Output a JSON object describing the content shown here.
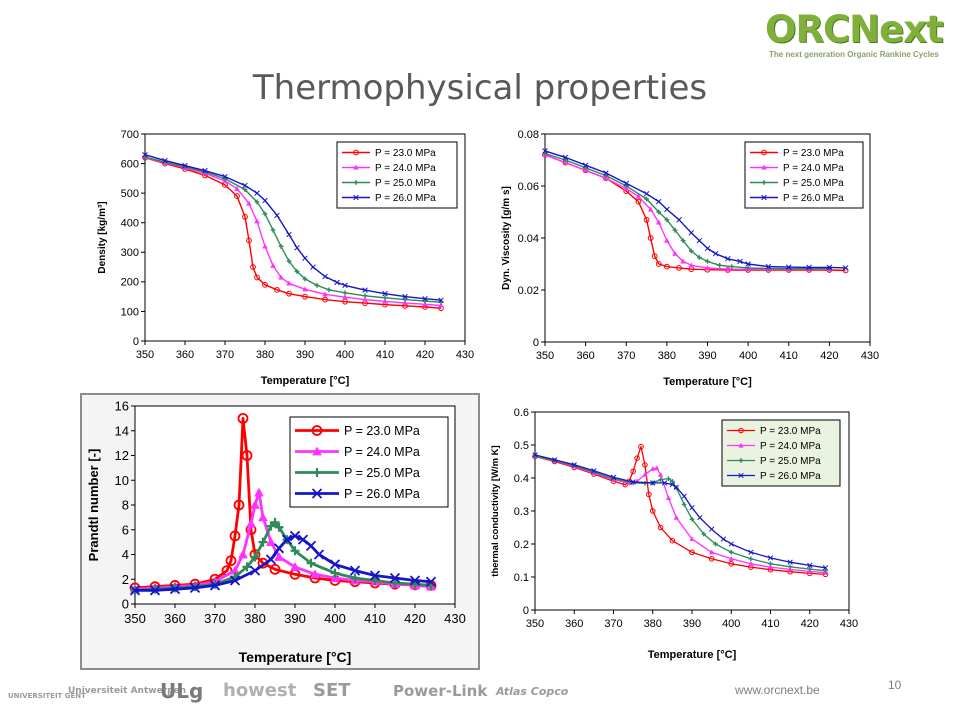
{
  "slide": {
    "title": "Thermophysical properties",
    "url": "www.orcnext.be",
    "page_number": "10",
    "logo": {
      "name": "ORCNext",
      "tagline": "The next generation Organic Rankine Cycles"
    },
    "partners": [
      "UNIVERSITEIT GENT",
      "Universiteit Antwerpen",
      "ULg",
      "howest",
      "SET",
      "Power-Link",
      "Atlas Copco"
    ]
  },
  "colors": {
    "p23": "#ff0000",
    "p24": "#ff33ff",
    "p25": "#2e8b57",
    "p26": "#1515c8",
    "title": "#595959",
    "logo": "#7fb13a"
  },
  "chart_data": [
    {
      "type": "line",
      "xlabel": "Temperature [°C]",
      "ylabel": "Density [kg/m³]",
      "xlim": [
        350,
        430
      ],
      "ylim": [
        0,
        700
      ],
      "xticks": [
        350,
        360,
        370,
        380,
        390,
        400,
        410,
        420,
        430
      ],
      "yticks": [
        0,
        100,
        200,
        300,
        400,
        500,
        600,
        700
      ],
      "legend": "top-right",
      "series": [
        {
          "name": "P = 23.0 MPa",
          "marker": "circle",
          "x": [
            350,
            355,
            360,
            365,
            370,
            373,
            375,
            376,
            377,
            378,
            380,
            383,
            386,
            390,
            395,
            400,
            405,
            410,
            415,
            420,
            424
          ],
          "y": [
            620,
            600,
            582,
            560,
            528,
            490,
            420,
            340,
            250,
            215,
            190,
            173,
            160,
            150,
            140,
            133,
            128,
            123,
            119,
            115,
            111
          ]
        },
        {
          "name": "P = 24.0 MPa",
          "marker": "triangle",
          "x": [
            350,
            355,
            360,
            365,
            370,
            373,
            376,
            378,
            380,
            382,
            384,
            386,
            390,
            395,
            400,
            405,
            410,
            415,
            420,
            424
          ],
          "y": [
            621,
            603,
            586,
            567,
            541,
            515,
            465,
            405,
            320,
            255,
            215,
            195,
            175,
            158,
            148,
            140,
            134,
            129,
            124,
            120
          ]
        },
        {
          "name": "P = 25.0 MPa",
          "marker": "plus",
          "x": [
            350,
            355,
            360,
            365,
            370,
            375,
            378,
            380,
            382,
            384,
            386,
            388,
            390,
            393,
            396,
            400,
            405,
            410,
            415,
            420,
            424
          ],
          "y": [
            622,
            605,
            589,
            571,
            549,
            512,
            470,
            430,
            375,
            320,
            270,
            235,
            210,
            188,
            173,
            163,
            153,
            146,
            140,
            135,
            131
          ]
        },
        {
          "name": "P = 26.0 MPa",
          "marker": "cross",
          "x": [
            350,
            355,
            360,
            365,
            370,
            375,
            378,
            380,
            383,
            386,
            388,
            390,
            392,
            395,
            398,
            400,
            405,
            410,
            415,
            420,
            424
          ],
          "y": [
            630,
            610,
            593,
            576,
            556,
            526,
            500,
            475,
            425,
            360,
            315,
            280,
            250,
            218,
            198,
            188,
            172,
            160,
            150,
            143,
            138
          ]
        }
      ]
    },
    {
      "type": "line",
      "xlabel": "Temperature [°C]",
      "ylabel": "Dyn. Viscosity  [g/m s]",
      "xlim": [
        350,
        430
      ],
      "ylim": [
        0,
        0.08
      ],
      "xticks": [
        350,
        360,
        370,
        380,
        390,
        400,
        410,
        420,
        430
      ],
      "yticks": [
        0,
        0.02,
        0.04,
        0.06,
        0.08
      ],
      "yticklabels": [
        "0",
        "0.02",
        "0.04",
        "0.06",
        "0.08"
      ],
      "legend": "top-right",
      "series": [
        {
          "name": "P = 23.0 MPa",
          "marker": "circle",
          "x": [
            350,
            355,
            360,
            365,
            370,
            373,
            375,
            376,
            377,
            378,
            380,
            383,
            386,
            390,
            395,
            400,
            405,
            410,
            415,
            420,
            424
          ],
          "y": [
            0.072,
            0.069,
            0.066,
            0.063,
            0.058,
            0.054,
            0.047,
            0.04,
            0.033,
            0.03,
            0.029,
            0.0285,
            0.028,
            0.0278,
            0.0277,
            0.0277,
            0.0277,
            0.0277,
            0.0277,
            0.0277,
            0.0275
          ]
        },
        {
          "name": "P = 24.0 MPa",
          "marker": "triangle",
          "x": [
            350,
            355,
            360,
            365,
            370,
            373,
            376,
            378,
            380,
            382,
            384,
            386,
            390,
            395,
            400,
            405,
            410,
            415,
            420
          ],
          "y": [
            0.072,
            0.069,
            0.066,
            0.063,
            0.059,
            0.056,
            0.051,
            0.046,
            0.039,
            0.034,
            0.031,
            0.0295,
            0.0285,
            0.028,
            0.028,
            0.028,
            0.028,
            0.028,
            0.028
          ]
        },
        {
          "name": "P = 25.0 MPa",
          "marker": "plus",
          "x": [
            350,
            355,
            360,
            365,
            370,
            375,
            378,
            380,
            382,
            384,
            386,
            388,
            390,
            393,
            396,
            400,
            405,
            410,
            415,
            420
          ],
          "y": [
            0.0725,
            0.07,
            0.067,
            0.064,
            0.06,
            0.055,
            0.05,
            0.047,
            0.043,
            0.039,
            0.035,
            0.0325,
            0.031,
            0.0295,
            0.029,
            0.0285,
            0.0283,
            0.0282,
            0.0282,
            0.0282
          ]
        },
        {
          "name": "P = 26.0 MPa",
          "marker": "cross",
          "x": [
            350,
            355,
            360,
            365,
            370,
            375,
            378,
            380,
            383,
            386,
            388,
            390,
            392,
            395,
            398,
            400,
            405,
            410,
            415,
            420,
            424
          ],
          "y": [
            0.0735,
            0.071,
            0.068,
            0.065,
            0.061,
            0.057,
            0.054,
            0.051,
            0.047,
            0.042,
            0.039,
            0.036,
            0.034,
            0.032,
            0.031,
            0.03,
            0.029,
            0.0288,
            0.0287,
            0.0287,
            0.0285
          ]
        }
      ]
    },
    {
      "type": "line",
      "xlabel": "Temperature [°C]",
      "ylabel": "Prandtl number [-]",
      "xlim": [
        350,
        430
      ],
      "ylim": [
        0,
        16
      ],
      "xticks": [
        350,
        360,
        370,
        380,
        390,
        400,
        410,
        420,
        430
      ],
      "yticks": [
        0,
        2,
        4,
        6,
        8,
        10,
        12,
        14,
        16
      ],
      "legend": "top-right",
      "series": [
        {
          "name": "P = 23.0 MPa",
          "marker": "circle",
          "x": [
            350,
            355,
            360,
            365,
            370,
            373,
            374,
            375,
            376,
            377,
            378,
            379,
            380,
            382,
            385,
            390,
            395,
            400,
            405,
            410,
            415,
            420,
            424
          ],
          "y": [
            1.3,
            1.4,
            1.5,
            1.6,
            2.0,
            2.7,
            3.5,
            5.5,
            8.0,
            15.0,
            12.0,
            6.0,
            4.0,
            3.3,
            2.8,
            2.4,
            2.1,
            1.9,
            1.8,
            1.7,
            1.6,
            1.55,
            1.5
          ]
        },
        {
          "name": "P = 24.0 MPa",
          "marker": "triangle",
          "x": [
            350,
            355,
            360,
            365,
            370,
            375,
            377,
            379,
            380,
            381,
            382,
            384,
            386,
            390,
            395,
            400,
            405,
            410,
            415,
            420,
            424
          ],
          "y": [
            1.2,
            1.3,
            1.4,
            1.5,
            1.8,
            2.7,
            4.0,
            6.5,
            8.0,
            9.0,
            7.0,
            5.0,
            3.8,
            3.0,
            2.4,
            2.1,
            1.9,
            1.8,
            1.6,
            1.5,
            1.4
          ]
        },
        {
          "name": "P = 25.0 MPa",
          "marker": "plus",
          "x": [
            350,
            355,
            360,
            365,
            370,
            375,
            378,
            380,
            382,
            384,
            385,
            386,
            388,
            390,
            394,
            400,
            405,
            410,
            415,
            420,
            424
          ],
          "y": [
            1.1,
            1.2,
            1.3,
            1.4,
            1.6,
            2.2,
            3.0,
            3.8,
            5.0,
            6.3,
            6.6,
            6.2,
            5.2,
            4.3,
            3.3,
            2.5,
            2.1,
            1.9,
            1.7,
            1.6,
            1.5
          ]
        },
        {
          "name": "P = 26.0 MPa",
          "marker": "cross",
          "x": [
            350,
            355,
            360,
            365,
            370,
            375,
            380,
            384,
            386,
            388,
            390,
            392,
            394,
            396,
            400,
            405,
            410,
            415,
            420,
            424
          ],
          "y": [
            1.1,
            1.1,
            1.2,
            1.3,
            1.5,
            1.9,
            2.7,
            3.6,
            4.5,
            5.2,
            5.5,
            5.2,
            4.7,
            4.0,
            3.2,
            2.7,
            2.3,
            2.1,
            1.9,
            1.8
          ]
        }
      ]
    },
    {
      "type": "line",
      "xlabel": "Temperature [°C]",
      "ylabel": "thermal conductivity [W/m K]",
      "xlim": [
        350,
        430
      ],
      "ylim": [
        0,
        0.6
      ],
      "xticks": [
        350,
        360,
        370,
        380,
        390,
        400,
        410,
        420,
        430
      ],
      "yticks": [
        0,
        0.1,
        0.2,
        0.3,
        0.4,
        0.5,
        0.6
      ],
      "yticklabels": [
        "0",
        "0.1",
        "0.2",
        "0.3",
        "0.4",
        "0.5",
        "0.6"
      ],
      "legend": "top-right",
      "series": [
        {
          "name": "P = 23.0 MPa",
          "marker": "circle",
          "x": [
            350,
            355,
            360,
            365,
            370,
            373,
            374,
            375,
            376,
            377,
            378,
            379,
            380,
            382,
            385,
            390,
            395,
            400,
            405,
            410,
            415,
            420,
            424
          ],
          "y": [
            0.465,
            0.45,
            0.432,
            0.412,
            0.39,
            0.38,
            0.39,
            0.42,
            0.46,
            0.495,
            0.44,
            0.35,
            0.3,
            0.25,
            0.21,
            0.175,
            0.155,
            0.14,
            0.13,
            0.122,
            0.116,
            0.111,
            0.108
          ]
        },
        {
          "name": "P = 24.0 MPa",
          "marker": "triangle",
          "x": [
            350,
            355,
            360,
            365,
            370,
            374,
            376,
            378,
            380,
            381,
            382,
            384,
            386,
            390,
            395,
            400,
            405,
            410,
            415,
            420,
            424
          ],
          "y": [
            0.465,
            0.452,
            0.435,
            0.415,
            0.395,
            0.385,
            0.39,
            0.41,
            0.428,
            0.43,
            0.41,
            0.34,
            0.28,
            0.215,
            0.175,
            0.155,
            0.14,
            0.13,
            0.123,
            0.117,
            0.113
          ]
        },
        {
          "name": "P = 25.0 MPa",
          "marker": "plus",
          "x": [
            350,
            355,
            360,
            365,
            370,
            375,
            378,
            380,
            382,
            384,
            385,
            386,
            388,
            390,
            393,
            396,
            400,
            405,
            410,
            415,
            420,
            424
          ],
          "y": [
            0.465,
            0.453,
            0.437,
            0.418,
            0.398,
            0.385,
            0.384,
            0.385,
            0.395,
            0.398,
            0.39,
            0.37,
            0.32,
            0.275,
            0.23,
            0.2,
            0.175,
            0.155,
            0.14,
            0.131,
            0.124,
            0.119
          ]
        },
        {
          "name": "P = 26.0 MPa",
          "marker": "cross",
          "x": [
            350,
            355,
            360,
            365,
            370,
            375,
            380,
            383,
            385,
            386,
            388,
            390,
            392,
            395,
            398,
            400,
            405,
            410,
            415,
            420,
            424
          ],
          "y": [
            0.47,
            0.455,
            0.44,
            0.422,
            0.402,
            0.388,
            0.385,
            0.385,
            0.38,
            0.372,
            0.345,
            0.31,
            0.28,
            0.245,
            0.215,
            0.2,
            0.175,
            0.158,
            0.145,
            0.135,
            0.128
          ]
        }
      ]
    }
  ]
}
